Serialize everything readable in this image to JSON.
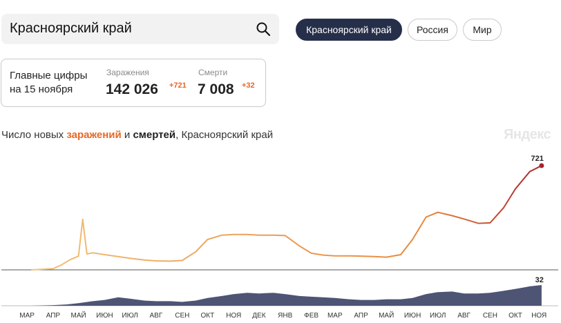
{
  "search": {
    "value": "Красноярский край"
  },
  "region_tabs": [
    {
      "label": "Красноярский край",
      "active": true
    },
    {
      "label": "Россия",
      "active": false
    },
    {
      "label": "Мир",
      "active": false
    }
  ],
  "summary": {
    "heading_line1": "Главные цифры",
    "heading_line2": "на 15 ноября",
    "infections_label": "Заражения",
    "infections_value": "142 026",
    "infections_delta": "+721",
    "deaths_label": "Смерти",
    "deaths_value": "7 008",
    "deaths_delta": "+32"
  },
  "chart_caption": {
    "prefix": "Число новых ",
    "cases_word": "заражений",
    "middle": " и ",
    "deaths_word": "смертей",
    "suffix": ", Красноярский край"
  },
  "watermark": "Яндекс",
  "colors": {
    "cases_start": "#f2c07a",
    "cases_mid": "#e8873a",
    "cases_end": "#a8232c",
    "deaths_fill": "#4d5474",
    "active_pill": "#262f4a"
  },
  "chart_data": {
    "type": "area",
    "x_ticks": [
      "МАР",
      "АПР",
      "МАЙ",
      "ИЮН",
      "ИЮЛ",
      "АВГ",
      "СЕН",
      "ОКТ",
      "НОЯ",
      "ДЕК",
      "ЯНВ",
      "ФЕВ",
      "МАР",
      "АПР",
      "МАЙ",
      "ИЮН",
      "ИЮЛ",
      "АВГ",
      "СЕН",
      "ОКТ",
      "НОЯ"
    ],
    "series": [
      {
        "name": "заражений",
        "x": [
          "2020-03-20",
          "2020-04-15",
          "2020-04-25",
          "2020-05-05",
          "2020-05-15",
          "2020-05-20",
          "2020-05-25",
          "2020-06-01",
          "2020-06-15",
          "2020-07-01",
          "2020-07-15",
          "2020-08-01",
          "2020-08-15",
          "2020-09-01",
          "2020-09-15",
          "2020-10-01",
          "2020-10-15",
          "2020-11-01",
          "2020-11-15",
          "2020-12-01",
          "2020-12-15",
          "2021-01-01",
          "2021-01-15",
          "2021-02-01",
          "2021-02-15",
          "2021-03-01",
          "2021-03-15",
          "2021-04-01",
          "2021-04-15",
          "2021-05-01",
          "2021-05-15",
          "2021-06-01",
          "2021-06-15",
          "2021-07-01",
          "2021-07-15",
          "2021-08-01",
          "2021-08-15",
          "2021-09-01",
          "2021-09-15",
          "2021-10-01",
          "2021-10-15",
          "2021-11-01",
          "2021-11-15"
        ],
        "values": [
          0,
          8,
          35,
          70,
          95,
          350,
          110,
          118,
          105,
          92,
          80,
          68,
          62,
          60,
          65,
          125,
          210,
          240,
          245,
          245,
          240,
          240,
          238,
          165,
          115,
          102,
          97,
          97,
          95,
          92,
          88,
          105,
          210,
          365,
          398,
          375,
          352,
          322,
          325,
          430,
          560,
          680,
          721
        ]
      },
      {
        "name": "смертей",
        "x": [
          "2020-03-20",
          "2020-04-15",
          "2020-05-01",
          "2020-05-15",
          "2020-06-01",
          "2020-06-15",
          "2020-07-01",
          "2020-07-15",
          "2020-08-01",
          "2020-08-15",
          "2020-09-01",
          "2020-09-15",
          "2020-10-01",
          "2020-10-15",
          "2020-11-01",
          "2020-11-15",
          "2020-12-01",
          "2020-12-15",
          "2021-01-01",
          "2021-01-15",
          "2021-02-01",
          "2021-02-15",
          "2021-03-01",
          "2021-03-15",
          "2021-04-01",
          "2021-04-15",
          "2021-05-01",
          "2021-05-15",
          "2021-06-01",
          "2021-06-15",
          "2021-07-01",
          "2021-07-15",
          "2021-08-01",
          "2021-08-15",
          "2021-09-01",
          "2021-09-15",
          "2021-10-01",
          "2021-10-15",
          "2021-11-01",
          "2021-11-15"
        ],
        "values": [
          0,
          1,
          2,
          4,
          7,
          9,
          13,
          11,
          8,
          7,
          7,
          6,
          8,
          12,
          15,
          18,
          20,
          19,
          20,
          18,
          15,
          14,
          13,
          12,
          10,
          9,
          9,
          10,
          10,
          12,
          18,
          21,
          22,
          19,
          19,
          20,
          23,
          26,
          30,
          32
        ]
      }
    ],
    "last_labels": {
      "cases": "721",
      "deaths": "32"
    }
  }
}
